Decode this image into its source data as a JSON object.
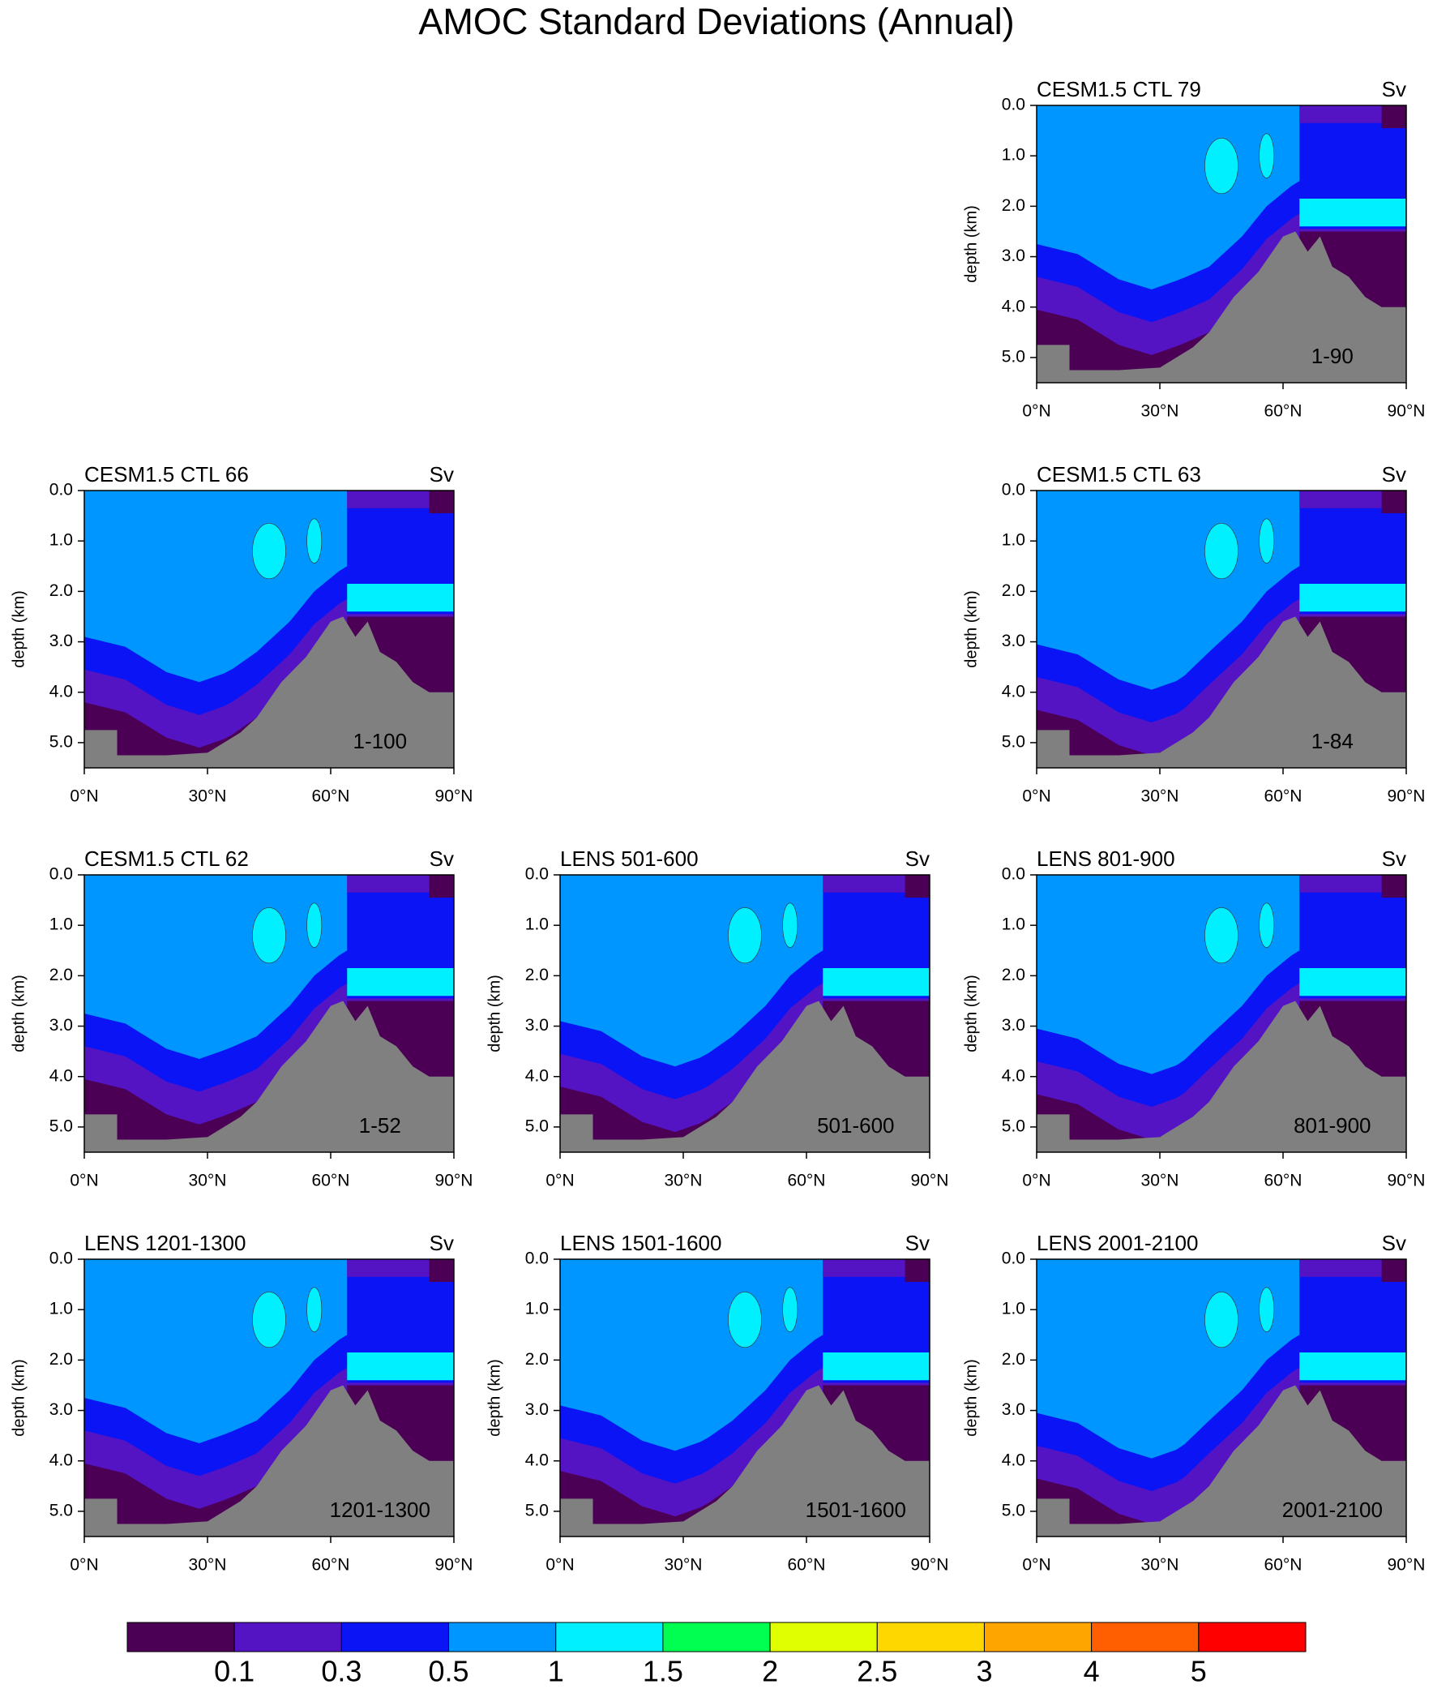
{
  "title": "AMOC Standard Deviations (Annual)",
  "chart_data": [
    {
      "type": "contour",
      "title": "CESM1.5 CTL 79",
      "units": "Sv",
      "annotation": "1-90",
      "ylabel": "depth (km)",
      "xlim": [
        0,
        90
      ],
      "xticks": [
        {
          "value": 0,
          "label": "0°N"
        },
        {
          "value": 30,
          "label": "30°N"
        },
        {
          "value": 60,
          "label": "60°N"
        },
        {
          "value": 90,
          "label": "90°N"
        }
      ],
      "ylim": [
        0,
        5.5
      ],
      "y_reversed": true,
      "yticks": [
        {
          "value": 0,
          "label": "0.0"
        },
        {
          "value": 1,
          "label": "1.0"
        },
        {
          "value": 2,
          "label": "2.0"
        },
        {
          "value": 3,
          "label": "3.0"
        },
        {
          "value": 4,
          "label": "4.0"
        },
        {
          "value": 5,
          "label": "5.0"
        }
      ]
    },
    {
      "type": "contour",
      "title": "CESM1.5 CTL 66",
      "units": "Sv",
      "annotation": "1-100",
      "ylabel": "depth (km)",
      "xlim": [
        0,
        90
      ],
      "xticks": [
        {
          "value": 0,
          "label": "0°N"
        },
        {
          "value": 30,
          "label": "30°N"
        },
        {
          "value": 60,
          "label": "60°N"
        },
        {
          "value": 90,
          "label": "90°N"
        }
      ],
      "ylim": [
        0,
        5.5
      ],
      "y_reversed": true,
      "yticks": [
        {
          "value": 0,
          "label": "0.0"
        },
        {
          "value": 1,
          "label": "1.0"
        },
        {
          "value": 2,
          "label": "2.0"
        },
        {
          "value": 3,
          "label": "3.0"
        },
        {
          "value": 4,
          "label": "4.0"
        },
        {
          "value": 5,
          "label": "5.0"
        }
      ]
    },
    {
      "type": "contour",
      "title": "CESM1.5 CTL 63",
      "units": "Sv",
      "annotation": "1-84",
      "ylabel": "depth (km)",
      "xlim": [
        0,
        90
      ],
      "xticks": [
        {
          "value": 0,
          "label": "0°N"
        },
        {
          "value": 30,
          "label": "30°N"
        },
        {
          "value": 60,
          "label": "60°N"
        },
        {
          "value": 90,
          "label": "90°N"
        }
      ],
      "ylim": [
        0,
        5.5
      ],
      "y_reversed": true,
      "yticks": [
        {
          "value": 0,
          "label": "0.0"
        },
        {
          "value": 1,
          "label": "1.0"
        },
        {
          "value": 2,
          "label": "2.0"
        },
        {
          "value": 3,
          "label": "3.0"
        },
        {
          "value": 4,
          "label": "4.0"
        },
        {
          "value": 5,
          "label": "5.0"
        }
      ]
    },
    {
      "type": "contour",
      "title": "CESM1.5 CTL 62",
      "units": "Sv",
      "annotation": "1-52",
      "ylabel": "depth (km)",
      "xlim": [
        0,
        90
      ],
      "xticks": [
        {
          "value": 0,
          "label": "0°N"
        },
        {
          "value": 30,
          "label": "30°N"
        },
        {
          "value": 60,
          "label": "60°N"
        },
        {
          "value": 90,
          "label": "90°N"
        }
      ],
      "ylim": [
        0,
        5.5
      ],
      "y_reversed": true,
      "yticks": [
        {
          "value": 0,
          "label": "0.0"
        },
        {
          "value": 1,
          "label": "1.0"
        },
        {
          "value": 2,
          "label": "2.0"
        },
        {
          "value": 3,
          "label": "3.0"
        },
        {
          "value": 4,
          "label": "4.0"
        },
        {
          "value": 5,
          "label": "5.0"
        }
      ]
    },
    {
      "type": "contour",
      "title": "LENS 501-600",
      "units": "Sv",
      "annotation": "501-600",
      "ylabel": "depth (km)",
      "xlim": [
        0,
        90
      ],
      "xticks": [
        {
          "value": 0,
          "label": "0°N"
        },
        {
          "value": 30,
          "label": "30°N"
        },
        {
          "value": 60,
          "label": "60°N"
        },
        {
          "value": 90,
          "label": "90°N"
        }
      ],
      "ylim": [
        0,
        5.5
      ],
      "y_reversed": true,
      "yticks": [
        {
          "value": 0,
          "label": "0.0"
        },
        {
          "value": 1,
          "label": "1.0"
        },
        {
          "value": 2,
          "label": "2.0"
        },
        {
          "value": 3,
          "label": "3.0"
        },
        {
          "value": 4,
          "label": "4.0"
        },
        {
          "value": 5,
          "label": "5.0"
        }
      ]
    },
    {
      "type": "contour",
      "title": "LENS 801-900",
      "units": "Sv",
      "annotation": "801-900",
      "ylabel": "depth (km)",
      "xlim": [
        0,
        90
      ],
      "xticks": [
        {
          "value": 0,
          "label": "0°N"
        },
        {
          "value": 30,
          "label": "30°N"
        },
        {
          "value": 60,
          "label": "60°N"
        },
        {
          "value": 90,
          "label": "90°N"
        }
      ],
      "ylim": [
        0,
        5.5
      ],
      "y_reversed": true,
      "yticks": [
        {
          "value": 0,
          "label": "0.0"
        },
        {
          "value": 1,
          "label": "1.0"
        },
        {
          "value": 2,
          "label": "2.0"
        },
        {
          "value": 3,
          "label": "3.0"
        },
        {
          "value": 4,
          "label": "4.0"
        },
        {
          "value": 5,
          "label": "5.0"
        }
      ]
    },
    {
      "type": "contour",
      "title": "LENS 1201-1300",
      "units": "Sv",
      "annotation": "1201-1300",
      "ylabel": "depth (km)",
      "xlim": [
        0,
        90
      ],
      "xticks": [
        {
          "value": 0,
          "label": "0°N"
        },
        {
          "value": 30,
          "label": "30°N"
        },
        {
          "value": 60,
          "label": "60°N"
        },
        {
          "value": 90,
          "label": "90°N"
        }
      ],
      "ylim": [
        0,
        5.5
      ],
      "y_reversed": true,
      "yticks": [
        {
          "value": 0,
          "label": "0.0"
        },
        {
          "value": 1,
          "label": "1.0"
        },
        {
          "value": 2,
          "label": "2.0"
        },
        {
          "value": 3,
          "label": "3.0"
        },
        {
          "value": 4,
          "label": "4.0"
        },
        {
          "value": 5,
          "label": "5.0"
        }
      ]
    },
    {
      "type": "contour",
      "title": "LENS 1501-1600",
      "units": "Sv",
      "annotation": "1501-1600",
      "ylabel": "depth (km)",
      "xlim": [
        0,
        90
      ],
      "xticks": [
        {
          "value": 0,
          "label": "0°N"
        },
        {
          "value": 30,
          "label": "30°N"
        },
        {
          "value": 60,
          "label": "60°N"
        },
        {
          "value": 90,
          "label": "90°N"
        }
      ],
      "ylim": [
        0,
        5.5
      ],
      "y_reversed": true,
      "yticks": [
        {
          "value": 0,
          "label": "0.0"
        },
        {
          "value": 1,
          "label": "1.0"
        },
        {
          "value": 2,
          "label": "2.0"
        },
        {
          "value": 3,
          "label": "3.0"
        },
        {
          "value": 4,
          "label": "4.0"
        },
        {
          "value": 5,
          "label": "5.0"
        }
      ]
    },
    {
      "type": "contour",
      "title": "LENS 2001-2100",
      "units": "Sv",
      "annotation": "2001-2100",
      "ylabel": "depth (km)",
      "xlim": [
        0,
        90
      ],
      "xticks": [
        {
          "value": 0,
          "label": "0°N"
        },
        {
          "value": 30,
          "label": "30°N"
        },
        {
          "value": 60,
          "label": "60°N"
        },
        {
          "value": 90,
          "label": "90°N"
        }
      ],
      "ylim": [
        0,
        5.5
      ],
      "y_reversed": true,
      "yticks": [
        {
          "value": 0,
          "label": "0.0"
        },
        {
          "value": 1,
          "label": "1.0"
        },
        {
          "value": 2,
          "label": "2.0"
        },
        {
          "value": 3,
          "label": "3.0"
        },
        {
          "value": 4,
          "label": "4.0"
        },
        {
          "value": 5,
          "label": "5.0"
        }
      ]
    }
  ],
  "colorbar": {
    "levels": [
      0.1,
      0.3,
      0.5,
      1,
      1.5,
      2,
      2.5,
      3,
      4,
      5
    ],
    "colors": [
      "#4b0055",
      "#5514c4",
      "#0a14f5",
      "#0096ff",
      "#00f0ff",
      "#00ff50",
      "#e0ff00",
      "#ffd700",
      "#ffa500",
      "#ff5f00",
      "#ff0000"
    ]
  }
}
